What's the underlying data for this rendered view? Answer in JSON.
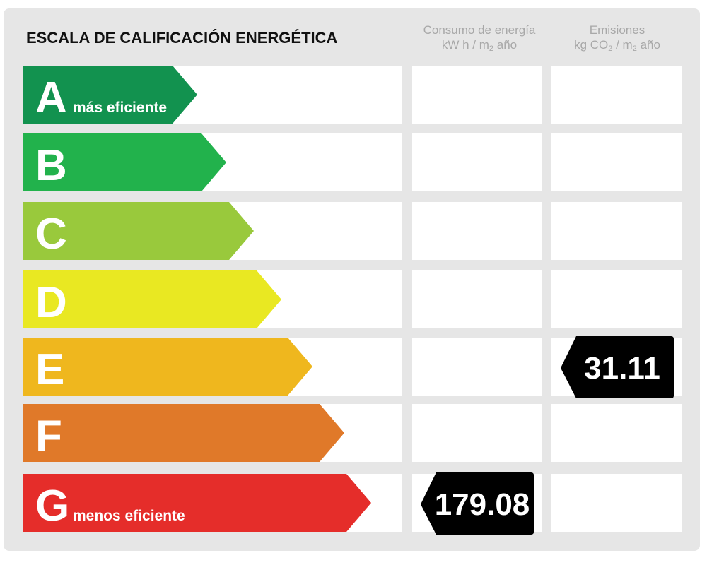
{
  "title": "ESCALA DE CALIFICACIÓN ENERGÉTICA",
  "consumption_header": {
    "title": "Consumo de energía",
    "unit": [
      "kW h / m",
      "2",
      " año"
    ]
  },
  "emissions_header": {
    "title": "Emisiones",
    "unit": [
      "kg CO",
      "2",
      " / m",
      "2",
      " año"
    ]
  },
  "rows": [
    {
      "letter": "A",
      "note": "más eficiente",
      "color": "#12924f"
    },
    {
      "letter": "B",
      "color": "#22b24c"
    },
    {
      "letter": "C",
      "color": "#99c93c"
    },
    {
      "letter": "D",
      "color": "#e9e822"
    },
    {
      "letter": "E",
      "color": "#efb71e",
      "emissions": 31.11
    },
    {
      "letter": "F",
      "color": "#e07929"
    },
    {
      "letter": "G",
      "note": "menos eficiente",
      "color": "#e52d2a",
      "consumption": 179.08
    }
  ]
}
